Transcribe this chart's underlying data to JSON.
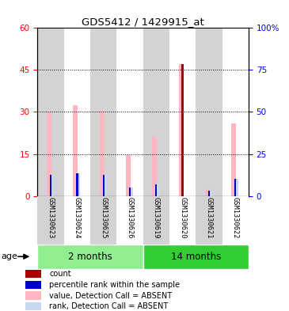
{
  "title": "GDS5412 / 1429915_at",
  "samples": [
    "GSM1330623",
    "GSM1330624",
    "GSM1330625",
    "GSM1330626",
    "GSM1330619",
    "GSM1330620",
    "GSM1330621",
    "GSM1330622"
  ],
  "value_absent": [
    30,
    32.5,
    30.5,
    14.5,
    21,
    47,
    2.5,
    26
  ],
  "rank_absent": [
    7.5,
    8,
    7.5,
    3,
    4,
    0,
    2,
    6
  ],
  "percentile_rank": [
    7.5,
    8,
    7.5,
    3,
    4,
    14.5,
    2,
    6
  ],
  "count_value": [
    0,
    0,
    0,
    0,
    0,
    47,
    0,
    0
  ],
  "left_ylim": [
    0,
    60
  ],
  "right_ylim": [
    0,
    100
  ],
  "left_yticks": [
    0,
    15,
    30,
    45,
    60
  ],
  "right_yticks": [
    0,
    25,
    50,
    75,
    100
  ],
  "right_yticklabels": [
    "0",
    "25",
    "50",
    "75",
    "100%"
  ],
  "color_count": "#AA0000",
  "color_percentile": "#0000CC",
  "color_value_absent": "#FFB6C1",
  "color_rank_absent": "#C8D8F0",
  "col_bg_odd": "#D3D3D3",
  "col_bg_even": "#FFFFFF",
  "group_2m_color": "#90EE90",
  "group_14m_color": "#32CD32",
  "age_label": "age",
  "legend_items": [
    {
      "color": "#AA0000",
      "label": "count"
    },
    {
      "color": "#0000CC",
      "label": "percentile rank within the sample"
    },
    {
      "color": "#FFB6C1",
      "label": "value, Detection Call = ABSENT"
    },
    {
      "color": "#C8D8F0",
      "label": "rank, Detection Call = ABSENT"
    }
  ]
}
